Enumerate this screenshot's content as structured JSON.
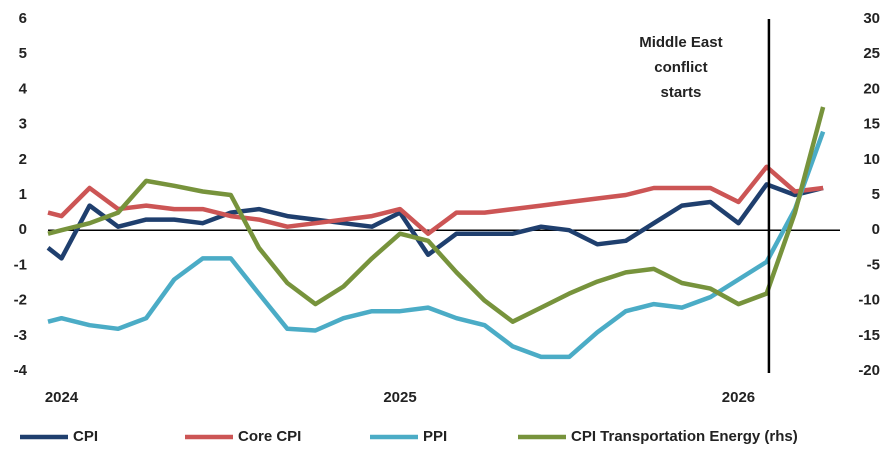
{
  "chart_data": {
    "type": "line",
    "x": [
      2023.96,
      2024.0,
      2024.083,
      2024.167,
      2024.25,
      2024.333,
      2024.417,
      2024.5,
      2024.583,
      2024.667,
      2024.75,
      2024.833,
      2024.917,
      2025.0,
      2025.083,
      2025.167,
      2025.25,
      2025.333,
      2025.417,
      2025.5,
      2025.583,
      2025.667,
      2025.75,
      2025.833,
      2025.917,
      2026.0,
      2026.083,
      2026.167,
      2026.25
    ],
    "series": [
      {
        "name": "CPI",
        "color": "#1f3f6e",
        "values": [
          -0.5,
          -0.8,
          0.7,
          0.1,
          0.3,
          0.3,
          0.2,
          0.5,
          0.6,
          0.4,
          0.3,
          0.2,
          0.1,
          0.5,
          -0.7,
          -0.1,
          -0.1,
          -0.1,
          0.1,
          0.0,
          -0.4,
          -0.3,
          0.2,
          0.7,
          0.8,
          0.2,
          1.3,
          1.0,
          1.2
        ]
      },
      {
        "name": "Core CPI",
        "color": "#cc5555",
        "values": [
          0.5,
          0.4,
          1.2,
          0.6,
          0.7,
          0.6,
          0.6,
          0.4,
          0.3,
          0.1,
          0.2,
          0.3,
          0.4,
          0.6,
          -0.1,
          0.5,
          0.5,
          0.6,
          0.7,
          0.8,
          0.9,
          1.0,
          1.2,
          1.2,
          1.2,
          0.8,
          1.8,
          1.1,
          1.2
        ]
      },
      {
        "name": "PPI",
        "color": "#4bacc6",
        "values": [
          -2.6,
          -2.5,
          -2.7,
          -2.8,
          -2.5,
          -1.4,
          -0.8,
          -0.8,
          -1.8,
          -2.8,
          -2.85,
          -2.5,
          -2.3,
          -2.3,
          -2.2,
          -2.5,
          -2.7,
          -3.3,
          -3.6,
          -3.6,
          -2.9,
          -2.3,
          -2.1,
          -2.2,
          -1.9,
          -1.4,
          -0.9,
          0.6,
          2.8
        ]
      },
      {
        "name": "CPI Transportation Energy (rhs)",
        "color": "#77933c",
        "axis": "y2",
        "values": [
          -0.5,
          0,
          1,
          2.5,
          7,
          6.3,
          5.5,
          5,
          -2.5,
          -7.5,
          -10.5,
          -8,
          -4,
          -0.5,
          -1.5,
          -6,
          -10,
          -13,
          -11,
          -9,
          -7.3,
          -6,
          -5.5,
          -7.5,
          -8.3,
          -10.5,
          -9,
          2.5,
          17.5
        ]
      }
    ],
    "xlim": [
      2023.96,
      2026.3
    ],
    "xticks": [
      2024,
      2025,
      2026
    ],
    "ylim": [
      -4,
      6
    ],
    "yticks": [
      -4,
      -3,
      -2,
      -1,
      0,
      1,
      2,
      3,
      4,
      5,
      6
    ],
    "y2lim": [
      -20,
      30
    ],
    "y2ticks": [
      -20,
      -15,
      -10,
      -5,
      0,
      5,
      10,
      15,
      20,
      25,
      30
    ],
    "zero_line": true,
    "legend": "bottom",
    "annotation": {
      "lines": [
        "Middle East",
        "conflict",
        "starts"
      ],
      "x": 2026.09
    }
  }
}
